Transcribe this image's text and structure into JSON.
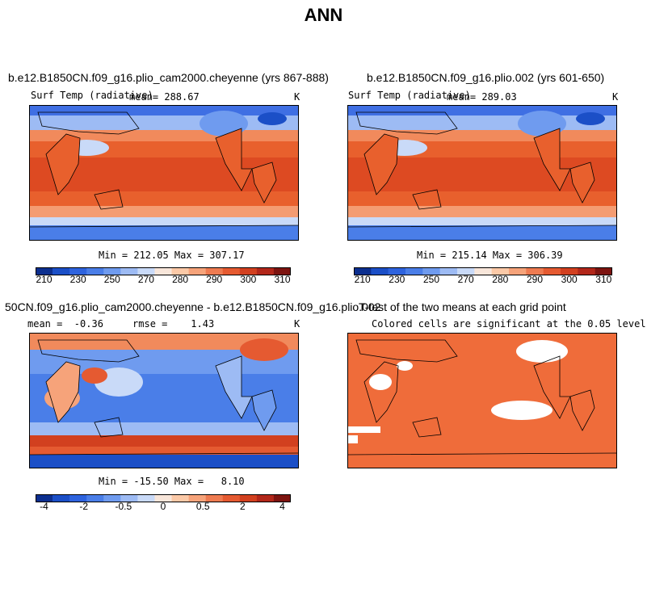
{
  "page": {
    "title": "ANN"
  },
  "panels": [
    {
      "title": "b.e12.B1850CN.f09_g16.plio_cam2000.cheyenne (yrs 867-888)",
      "left_label": "Surf Temp (radiative)",
      "mean_label": "mean= 288.67",
      "units": "K",
      "stats": "Min = 212.05 Max = 307.17"
    },
    {
      "title": "b.e12.B1850CN.f09_g16.plio.002 (yrs 601-650)",
      "left_label": "Surf Temp (radiative)",
      "mean_label": "mean= 289.03",
      "units": "K",
      "stats": "Min = 215.14 Max = 306.39"
    },
    {
      "title": "50CN.f09_g16.plio_cam2000.cheyenne - b.e12.B1850CN.f09_g16.plio.002",
      "left_label": "mean =  -0.36     rmse =    1.43",
      "units": "K",
      "stats": "Min = -15.50 Max =   8.10"
    },
    {
      "title": "T-test of the two means at each grid point",
      "subtitle": "Colored cells are significant at the 0.05 level"
    }
  ],
  "colorbars": {
    "temperature": {
      "colors": [
        "#0c2f8f",
        "#1b4fc7",
        "#2e63de",
        "#4a7ee8",
        "#6f9bef",
        "#9dbbf4",
        "#c9daf8",
        "#f8e6da",
        "#fbc9a7",
        "#f6a37a",
        "#ee7b51",
        "#e55a31",
        "#d2401f",
        "#b2271a",
        "#7d1410"
      ],
      "labels": [
        "210",
        "230",
        "250",
        "270",
        "280",
        "290",
        "300",
        "310"
      ]
    },
    "difference": {
      "colors": [
        "#0c2f8f",
        "#1b4fc7",
        "#2e63de",
        "#4a7ee8",
        "#6f9bef",
        "#9dbbf4",
        "#c9daf8",
        "#f8e6da",
        "#fbc9a7",
        "#f6a37a",
        "#ee7b51",
        "#e55a31",
        "#d2401f",
        "#b2271a",
        "#7d1410"
      ],
      "labels": [
        "-4",
        "-2",
        "-0.5",
        "0",
        "0.5",
        "2",
        "4"
      ]
    }
  },
  "colors": {
    "warm": "#e8602d",
    "tropics": "#e24e26",
    "mid": "#f18a5c",
    "cool": "#9dbbf4",
    "cold": "#3f6fe3",
    "deep": "#1f3ea8",
    "ttest": "#ef6c3a"
  }
}
